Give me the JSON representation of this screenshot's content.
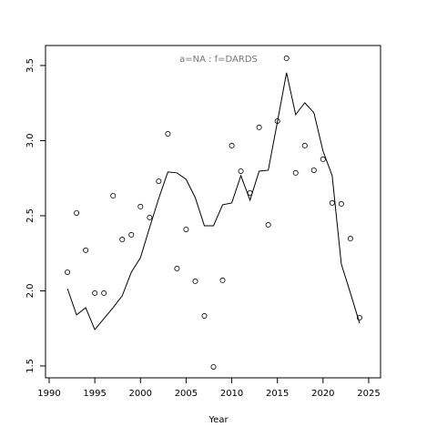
{
  "chart_data": {
    "type": "line",
    "title": "a=NA  :  f=DARDS",
    "xlabel": "Year",
    "x": [
      1992,
      1993,
      1994,
      1995,
      1996,
      1997,
      1998,
      1999,
      2000,
      2001,
      2002,
      2003,
      2004,
      2005,
      2006,
      2007,
      2008,
      2009,
      2010,
      2011,
      2012,
      2013,
      2014,
      2015,
      2016,
      2017,
      2018,
      2019,
      2020,
      2021,
      2022,
      2023,
      2024
    ],
    "series": [
      {
        "type": "scatter",
        "color": "#000000",
        "values": [
          2.124,
          2.518,
          2.27,
          1.985,
          1.985,
          2.633,
          2.342,
          2.373,
          2.561,
          2.488,
          2.73,
          3.045,
          2.148,
          2.409,
          2.064,
          1.833,
          1.494,
          2.07,
          2.967,
          2.797,
          2.652,
          3.088,
          2.439,
          3.13,
          3.548,
          2.785,
          2.967,
          2.803,
          2.876,
          2.585,
          2.579,
          2.348,
          1.821
        ]
      },
      {
        "type": "line",
        "color": "#000000",
        "values": [
          2.015,
          1.84,
          1.888,
          1.742,
          1.815,
          1.888,
          1.967,
          2.124,
          2.221,
          2.421,
          2.615,
          2.791,
          2.785,
          2.742,
          2.621,
          2.433,
          2.433,
          2.573,
          2.585,
          2.767,
          2.603,
          2.797,
          2.803,
          3.124,
          3.452,
          3.173,
          3.252,
          3.185,
          2.93,
          2.767,
          2.179,
          1.985,
          1.785
        ]
      }
    ],
    "xlim": [
      1989.6,
      2026.3
    ],
    "xticks": [
      1990,
      1995,
      2000,
      2005,
      2010,
      2015,
      2020,
      2025
    ],
    "ylim": [
      1.421,
      3.633
    ],
    "yticks": [
      1.5,
      {
        "value": 2,
        "label": "2.0"
      },
      2.5,
      {
        "value": 3,
        "label": "3.0"
      },
      3.5
    ]
  }
}
